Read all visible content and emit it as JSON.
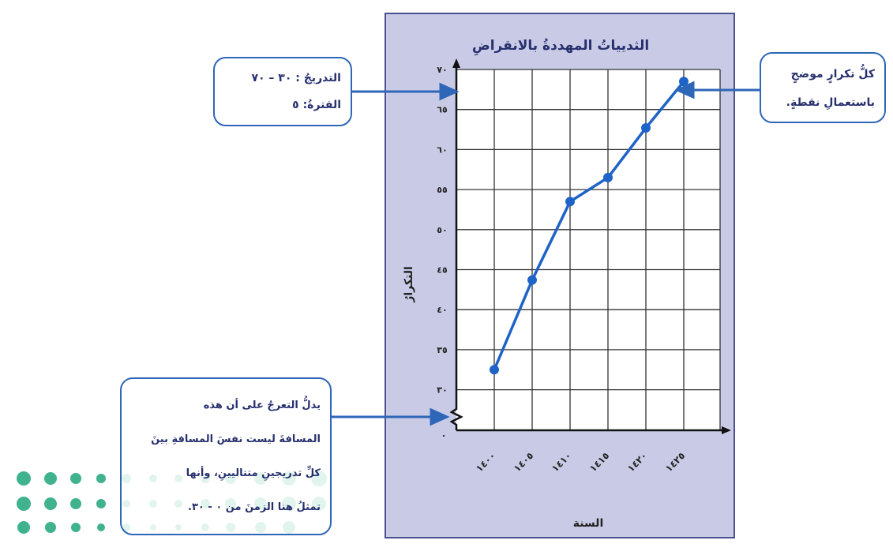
{
  "chart_data": {
    "type": "line",
    "title": "الثديياتُ المهددةُ بالانقراضِ",
    "xlabel": "السنة",
    "ylabel": "التكرارُ",
    "x": [
      1400,
      1405,
      1410,
      1415,
      1420,
      1425
    ],
    "x_tick_labels": [
      "١٤٠٠",
      "١٤٠٥",
      "١٤١٠",
      "١٤١٥",
      "١٤٢٠",
      "١٤٢٥"
    ],
    "series": [
      {
        "values": [
          32.5,
          43.7,
          53.5,
          56.5,
          62.7,
          68.5
        ]
      }
    ],
    "ylim": [
      30,
      70
    ],
    "y_ticks": [
      30,
      35,
      40,
      45,
      50,
      55,
      60,
      65,
      70
    ],
    "y_tick_labels": [
      "٣٠",
      "٣٥",
      "٤٠",
      "٤٥",
      "٥٠",
      "٥٥",
      "٦٠",
      "٦٥",
      "٧٠"
    ],
    "origin_label": "٠",
    "axis_break": true,
    "grid": true,
    "line_color": "#1e63c8"
  },
  "callouts": {
    "scale": {
      "line1": "التدريجُ : ٣٠ – ٧٠",
      "line2": "الفترةُ: ٥"
    },
    "points": {
      "line1": "كلُّ تكرارٍ موضحٍ",
      "line2": "باستعمالِ نقطةٍ."
    },
    "break": {
      "line1": "يدلُّ التعرجُ على أن هذه",
      "line2": "المسافةَ ليست نفسَ المسافةِ بينَ",
      "line3": "كلِّ تدريجينِ متتاليينِ، وأنها",
      "line4": "تمثلُ هنا الزمنَ من ٠ - ٣٠."
    }
  },
  "colors": {
    "panel": "#c9cbe6",
    "panel_border": "#4b4f8f",
    "callout_border": "#2e66b8",
    "arrow": "#2e66b8",
    "text": "#27306e",
    "logo_dots": "#1fa67a"
  },
  "logo": {
    "icon": "dotted-logo-icon"
  }
}
